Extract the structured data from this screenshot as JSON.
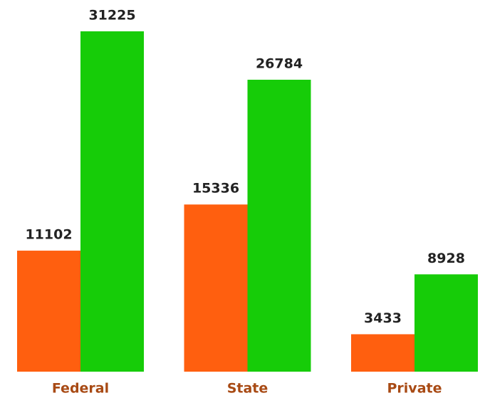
{
  "chart_data": {
    "type": "bar",
    "categories": [
      "Federal",
      "State",
      "Private"
    ],
    "series": [
      {
        "color": "#ff5f0f",
        "values": [
          11102,
          15336,
          3433
        ]
      },
      {
        "color": "#16cc08",
        "values": [
          31225,
          26784,
          8928
        ]
      }
    ],
    "ylim": [
      0,
      31225
    ],
    "category_color": "#a84a14"
  }
}
